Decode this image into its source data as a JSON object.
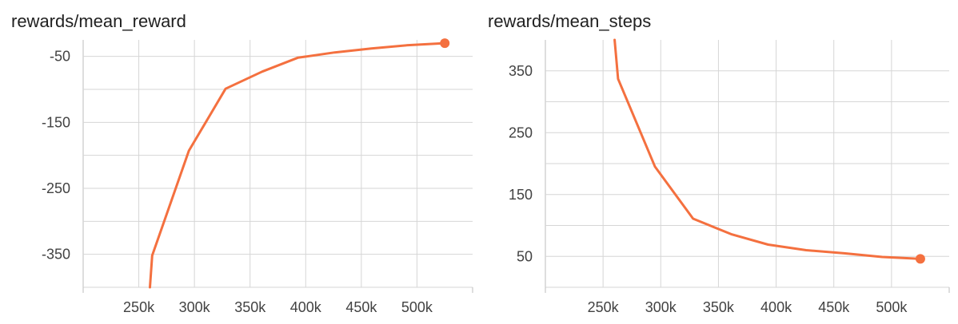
{
  "chart_data": [
    {
      "type": "line",
      "title": "rewards/mean_reward",
      "xlabel": "",
      "ylabel": "",
      "grid": true,
      "x_ticks": [
        {
          "value": 250000,
          "label": "250k"
        },
        {
          "value": 300000,
          "label": "300k"
        },
        {
          "value": 350000,
          "label": "350k"
        },
        {
          "value": 400000,
          "label": "400k"
        },
        {
          "value": 450000,
          "label": "450k"
        },
        {
          "value": 500000,
          "label": "500k"
        }
      ],
      "y_ticks": [
        {
          "value": -50,
          "label": "-50"
        },
        {
          "value": -100,
          "label": ""
        },
        {
          "value": -150,
          "label": "-150"
        },
        {
          "value": -200,
          "label": ""
        },
        {
          "value": -250,
          "label": "-250"
        },
        {
          "value": -300,
          "label": ""
        },
        {
          "value": -350,
          "label": "-350"
        },
        {
          "value": -400,
          "label": ""
        }
      ],
      "xlim": [
        200000,
        550000
      ],
      "ylim": [
        -400,
        -25
      ],
      "series": [
        {
          "color": "#f4703f",
          "x": [
            260000,
            262000,
            295000,
            328000,
            361000,
            393000,
            426000,
            459000,
            492000,
            525000
          ],
          "y": [
            -400,
            -352,
            -193,
            -99,
            -73,
            -52,
            -44,
            -38,
            -33,
            -30
          ]
        }
      ]
    },
    {
      "type": "line",
      "title": "rewards/mean_steps",
      "xlabel": "",
      "ylabel": "",
      "grid": true,
      "x_ticks": [
        {
          "value": 250000,
          "label": "250k"
        },
        {
          "value": 300000,
          "label": "300k"
        },
        {
          "value": 350000,
          "label": "350k"
        },
        {
          "value": 400000,
          "label": "400k"
        },
        {
          "value": 450000,
          "label": "450k"
        },
        {
          "value": 500000,
          "label": "500k"
        }
      ],
      "y_ticks": [
        {
          "value": 0,
          "label": ""
        },
        {
          "value": 50,
          "label": "50"
        },
        {
          "value": 100,
          "label": ""
        },
        {
          "value": 150,
          "label": "150"
        },
        {
          "value": 200,
          "label": ""
        },
        {
          "value": 250,
          "label": "250"
        },
        {
          "value": 300,
          "label": ""
        },
        {
          "value": 350,
          "label": "350"
        }
      ],
      "xlim": [
        200000,
        550000
      ],
      "ylim": [
        0,
        400
      ],
      "series": [
        {
          "color": "#f4703f",
          "x": [
            260000,
            263000,
            295000,
            328000,
            361000,
            393000,
            426000,
            459000,
            492000,
            525000
          ],
          "y": [
            400,
            337,
            195,
            111,
            86,
            69,
            60,
            55,
            49,
            46
          ]
        }
      ]
    }
  ]
}
